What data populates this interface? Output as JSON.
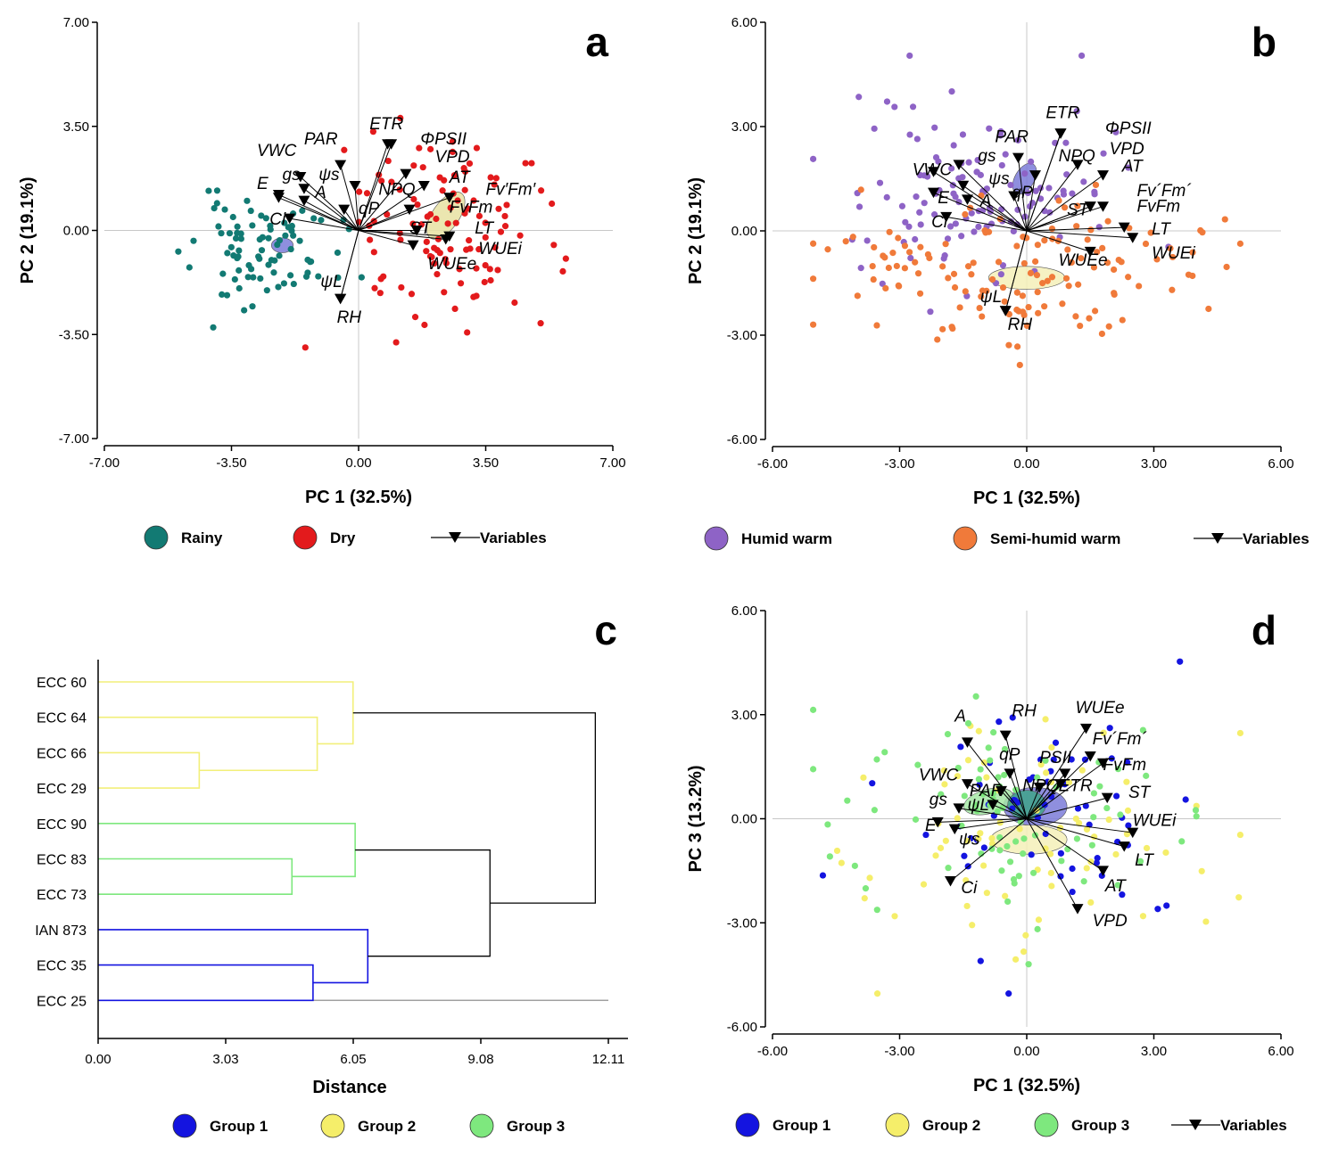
{
  "chart_data": [
    {
      "panel": "a",
      "type": "scatter",
      "xlabel": "PC 1 (32.5%)",
      "ylabel": "PC 2 (19.1%)",
      "xlim": [
        -7,
        7
      ],
      "ylim": [
        -7,
        7
      ],
      "xticks": [
        "-7.00",
        "-3.50",
        "0.00",
        "3.50",
        "7.00"
      ],
      "yticks": [
        "7.00",
        "3.50",
        "0.00",
        "-3.50",
        "-7.00"
      ],
      "groups": [
        {
          "name": "Rainy",
          "color": "#127a73",
          "seed": 11,
          "center": [
            -2.6,
            -0.7
          ],
          "spread": [
            1.0,
            0.9
          ],
          "n": 85
        },
        {
          "name": "Dry",
          "color": "#e31a1c",
          "seed": 23,
          "center": [
            2.4,
            0.1
          ],
          "spread": [
            1.5,
            1.8
          ],
          "n": 110
        }
      ],
      "ellipses": [
        {
          "cx": -2.1,
          "cy": -0.5,
          "rx": 0.3,
          "ry": 0.25,
          "angle": 0,
          "color": "#7b7bd8"
        },
        {
          "cx": 2.4,
          "cy": 0.5,
          "rx": 0.75,
          "ry": 0.45,
          "angle": -55,
          "color": "#e8e2a2"
        }
      ],
      "variables": [
        {
          "name": "ETR",
          "x": 0.9,
          "y": 2.9,
          "lx": 0.3,
          "ly": 3.4
        },
        {
          "name": "ΦPSII",
          "x": 0.8,
          "y": 2.9,
          "lx": 1.7,
          "ly": 2.9
        },
        {
          "name": "PAR",
          "x": -0.5,
          "y": 2.2,
          "lx": -1.5,
          "ly": 2.9
        },
        {
          "name": "VWC",
          "x": -1.6,
          "y": 1.8,
          "lx": -2.8,
          "ly": 2.5
        },
        {
          "name": "VPD",
          "x": 1.3,
          "y": 1.9,
          "lx": 2.1,
          "ly": 2.3
        },
        {
          "name": "AT",
          "x": 1.8,
          "y": 1.5,
          "lx": 2.5,
          "ly": 1.6
        },
        {
          "name": "gs",
          "x": -2.2,
          "y": 1.1,
          "lx": -2.1,
          "ly": 1.7
        },
        {
          "name": "ψs",
          "x": -1.5,
          "y": 1.4,
          "lx": -1.1,
          "ly": 1.7
        },
        {
          "name": "E",
          "x": -2.2,
          "y": 1.2,
          "lx": -2.8,
          "ly": 1.4
        },
        {
          "name": "NPQ",
          "x": -0.1,
          "y": 1.5,
          "lx": 0.55,
          "ly": 1.2
        },
        {
          "name": "Fv′Fm′",
          "x": 2.5,
          "y": 1.1,
          "lx": 3.5,
          "ly": 1.2
        },
        {
          "name": "A",
          "x": -1.5,
          "y": 1.0,
          "lx": -1.2,
          "ly": 1.1
        },
        {
          "name": "qP",
          "x": -0.4,
          "y": 0.7,
          "lx": 0.0,
          "ly": 0.55
        },
        {
          "name": "FvFm",
          "x": 1.4,
          "y": 0.7,
          "lx": 2.5,
          "ly": 0.6
        },
        {
          "name": "Ci",
          "x": -1.9,
          "y": 0.4,
          "lx": -2.45,
          "ly": 0.2
        },
        {
          "name": "ST",
          "x": 1.6,
          "y": 0.0,
          "lx": 1.4,
          "ly": -0.1
        },
        {
          "name": "LT",
          "x": 2.5,
          "y": -0.2,
          "lx": 3.2,
          "ly": -0.1
        },
        {
          "name": "WUEi",
          "x": 2.4,
          "y": -0.3,
          "lx": 3.3,
          "ly": -0.8
        },
        {
          "name": "WUEe",
          "x": 1.5,
          "y": -0.5,
          "lx": 1.9,
          "ly": -1.3
        },
        {
          "name": "ψL",
          "x": -0.5,
          "y": -2.3,
          "lx": -1.05,
          "ly": -1.9
        },
        {
          "name": "RH",
          "x": -0.5,
          "y": -2.3,
          "lx": -0.6,
          "ly": -3.1
        }
      ],
      "legend": {
        "items": [
          "Rainy",
          "Dry"
        ],
        "variables_label": "Variables"
      }
    },
    {
      "panel": "b",
      "type": "scatter",
      "xlabel": "PC 1 (32.5%)",
      "ylabel": "PC 2 (19.1%)",
      "xlim": [
        -6,
        6
      ],
      "ylim": [
        -6,
        6
      ],
      "xticks": [
        "-6.00",
        "-3.00",
        "0.00",
        "3.00",
        "6.00"
      ],
      "yticks": [
        "6.00",
        "3.00",
        "0.00",
        "-3.00",
        "-6.00"
      ],
      "groups": [
        {
          "name": "Humid warm",
          "color": "#8e63c6",
          "seed": 37,
          "center": [
            -1.0,
            1.2
          ],
          "spread": [
            1.5,
            1.4
          ],
          "n": 120
        },
        {
          "name": "Semi-humid warm",
          "color": "#f07a3a",
          "seed": 49,
          "center": [
            0.0,
            -1.2
          ],
          "spread": [
            2.5,
            1.1
          ],
          "n": 140
        }
      ],
      "ellipses": [
        {
          "cx": -0.05,
          "cy": 1.5,
          "rx": 0.4,
          "ry": 0.28,
          "angle": -60,
          "color": "#7b7bd8"
        },
        {
          "cx": 0.0,
          "cy": -1.35,
          "rx": 0.9,
          "ry": 0.33,
          "angle": 0,
          "color": "#f4f0b8"
        }
      ],
      "variables": [
        {
          "name": "ETR",
          "x": 0.8,
          "y": 2.8,
          "lx": 0.45,
          "ly": 3.25
        },
        {
          "name": "ΦPSII",
          "x": 0.8,
          "y": 2.8,
          "lx": 1.85,
          "ly": 2.8
        },
        {
          "name": "PAR",
          "x": -0.2,
          "y": 2.1,
          "lx": -0.75,
          "ly": 2.55
        },
        {
          "name": "VPD",
          "x": 1.2,
          "y": 1.9,
          "lx": 1.95,
          "ly": 2.2
        },
        {
          "name": "gs",
          "x": -1.6,
          "y": 1.9,
          "lx": -1.15,
          "ly": 2.0
        },
        {
          "name": "VWC",
          "x": -2.2,
          "y": 1.7,
          "lx": -2.7,
          "ly": 1.6
        },
        {
          "name": "NPQ",
          "x": 0.2,
          "y": 1.6,
          "lx": 0.75,
          "ly": 2.0
        },
        {
          "name": "AT",
          "x": 1.8,
          "y": 1.6,
          "lx": 2.25,
          "ly": 1.7
        },
        {
          "name": "ψs",
          "x": -1.5,
          "y": 1.3,
          "lx": -0.9,
          "ly": 1.35
        },
        {
          "name": "qP",
          "x": -0.3,
          "y": 1.0,
          "lx": -0.35,
          "ly": 0.95
        },
        {
          "name": "Fv´Fm´",
          "x": 1.8,
          "y": 0.7,
          "lx": 2.6,
          "ly": 1.0
        },
        {
          "name": "E",
          "x": -2.2,
          "y": 1.1,
          "lx": -2.1,
          "ly": 0.8
        },
        {
          "name": "A",
          "x": -1.4,
          "y": 0.9,
          "lx": -1.1,
          "ly": 0.7
        },
        {
          "name": "ST",
          "x": 1.5,
          "y": 0.7,
          "lx": 0.95,
          "ly": 0.45
        },
        {
          "name": "FvFm",
          "x": 1.5,
          "y": 0.7,
          "lx": 2.6,
          "ly": 0.55
        },
        {
          "name": "Ci",
          "x": -1.9,
          "y": 0.4,
          "lx": -2.25,
          "ly": 0.1
        },
        {
          "name": "LT",
          "x": 2.3,
          "y": 0.1,
          "lx": 2.95,
          "ly": -0.1
        },
        {
          "name": "WUEi",
          "x": 2.5,
          "y": -0.2,
          "lx": 2.95,
          "ly": -0.8
        },
        {
          "name": "WUEe",
          "x": 1.5,
          "y": -0.6,
          "lx": 0.75,
          "ly": -1.0
        },
        {
          "name": "ψL",
          "x": -0.5,
          "y": -2.3,
          "lx": -1.1,
          "ly": -2.05
        },
        {
          "name": "RH",
          "x": -0.5,
          "y": -2.3,
          "lx": -0.45,
          "ly": -2.85
        }
      ],
      "legend": {
        "items": [
          "Humid warm",
          "Semi-humid warm"
        ],
        "variables_label": "Variables"
      }
    },
    {
      "panel": "c",
      "type": "dendrogram",
      "xlabel": "Distance",
      "xlim": [
        0,
        12.11
      ],
      "xticks": [
        "0.00",
        "3.03",
        "6.05",
        "9.08",
        "12.11"
      ],
      "leaves": [
        "ECC 60",
        "ECC 64",
        "ECC 66",
        "ECC 29",
        "ECC 90",
        "ECC 83",
        "ECC 73",
        "IAN 873",
        "ECC 35",
        "ECC 25"
      ],
      "merges": [
        {
          "a": 2,
          "b": 3,
          "height": 2.4,
          "color": "#f2ef7a"
        },
        {
          "a": 1,
          "b": "m0",
          "height": 5.2,
          "color": "#f2ef7a"
        },
        {
          "a": 0,
          "b": "m1",
          "height": 6.05,
          "color": "#f2ef7a"
        },
        {
          "a": 5,
          "b": 6,
          "height": 4.6,
          "color": "#7ee87e"
        },
        {
          "a": 4,
          "b": "m3",
          "height": 6.1,
          "color": "#7ee87e"
        },
        {
          "a": 8,
          "b": 9,
          "height": 5.1,
          "color": "#1414e0"
        },
        {
          "a": 7,
          "b": "m5",
          "height": 6.4,
          "color": "#1414e0"
        },
        {
          "a": "m4",
          "b": "m6",
          "height": 9.3,
          "color": "#000000"
        },
        {
          "a": "m2",
          "b": "m7",
          "height": 11.8,
          "color": "#000000"
        }
      ],
      "legend": {
        "items": [
          "Group 1",
          "Group 2",
          "Group 3"
        ]
      }
    },
    {
      "panel": "d",
      "type": "scatter",
      "xlabel": "PC 1 (32.5%)",
      "ylabel": "PC 3 (13.2%)",
      "xlim": [
        -6,
        6
      ],
      "ylim": [
        -6,
        6
      ],
      "xticks": [
        "-6.00",
        "-3.00",
        "0.00",
        "3.00",
        "6.00"
      ],
      "yticks": [
        "6.00",
        "3.00",
        "0.00",
        "-3.00",
        "-6.00"
      ],
      "groups": [
        {
          "name": "Group 1",
          "color": "#1414e0",
          "seed": 61,
          "center": [
            0.2,
            0.4
          ],
          "spread": [
            1.9,
            1.8
          ],
          "n": 60
        },
        {
          "name": "Group 2",
          "color": "#f5ee6a",
          "seed": 73,
          "center": [
            0.2,
            -0.6
          ],
          "spread": [
            2.4,
            1.6
          ],
          "n": 75
        },
        {
          "name": "Group 3",
          "color": "#7ee87e",
          "seed": 89,
          "center": [
            -1.0,
            0.2
          ],
          "spread": [
            2.0,
            1.4
          ],
          "n": 80
        }
      ],
      "ellipses": [
        {
          "cx": 0.2,
          "cy": 0.35,
          "rx": 0.75,
          "ry": 0.55,
          "angle": 0,
          "color": "#7b7bd8"
        },
        {
          "cx": 0.05,
          "cy": -0.6,
          "rx": 0.9,
          "ry": 0.42,
          "angle": 0,
          "color": "#f4f0b8"
        },
        {
          "cx": -0.9,
          "cy": 0.5,
          "rx": 0.6,
          "ry": 0.35,
          "angle": -15,
          "color": "#a6e8a6"
        },
        {
          "cx": 0.0,
          "cy": 0.4,
          "rx": 0.45,
          "ry": 0.42,
          "angle": 0,
          "color": "#3fa58a"
        }
      ],
      "variables": [
        {
          "name": "WUEe",
          "x": 1.4,
          "y": 2.6,
          "lx": 1.15,
          "ly": 3.05
        },
        {
          "name": "A",
          "x": -1.4,
          "y": 2.2,
          "lx": -1.7,
          "ly": 2.8
        },
        {
          "name": "RH",
          "x": -0.5,
          "y": 2.4,
          "lx": -0.35,
          "ly": 2.95
        },
        {
          "name": "Fv´Fm´",
          "x": 1.5,
          "y": 1.8,
          "lx": 1.55,
          "ly": 2.15
        },
        {
          "name": "qP",
          "x": -0.4,
          "y": 1.3,
          "lx": -0.65,
          "ly": 1.7
        },
        {
          "name": "PSII",
          "x": 0.9,
          "y": 1.3,
          "lx": 0.3,
          "ly": 1.6
        },
        {
          "name": "FvFm",
          "x": 1.8,
          "y": 1.6,
          "lx": 1.8,
          "ly": 1.4
        },
        {
          "name": "VWC",
          "x": -1.4,
          "y": 1.0,
          "lx": -2.55,
          "ly": 1.1
        },
        {
          "name": "ETR",
          "x": 0.8,
          "y": 1.0,
          "lx": 0.75,
          "ly": 0.8
        },
        {
          "name": "NPQ",
          "x": 0.3,
          "y": 0.9,
          "lx": -0.1,
          "ly": 0.8
        },
        {
          "name": "PAR",
          "x": -0.6,
          "y": 0.8,
          "lx": -1.35,
          "ly": 0.65
        },
        {
          "name": "ST",
          "x": 1.9,
          "y": 0.6,
          "lx": 2.4,
          "ly": 0.6
        },
        {
          "name": "gs",
          "x": -1.6,
          "y": 0.3,
          "lx": -2.3,
          "ly": 0.4
        },
        {
          "name": "ψL",
          "x": -0.8,
          "y": 0.4,
          "lx": -1.4,
          "ly": 0.25
        },
        {
          "name": "E",
          "x": -2.1,
          "y": -0.1,
          "lx": -2.4,
          "ly": -0.35
        },
        {
          "name": "WUEi",
          "x": 2.5,
          "y": -0.4,
          "lx": 2.5,
          "ly": -0.2
        },
        {
          "name": "ψs",
          "x": -1.7,
          "y": -0.3,
          "lx": -1.6,
          "ly": -0.75
        },
        {
          "name": "LT",
          "x": 2.3,
          "y": -0.8,
          "lx": 2.55,
          "ly": -1.35
        },
        {
          "name": "AT",
          "x": 1.8,
          "y": -1.5,
          "lx": 1.85,
          "ly": -2.1
        },
        {
          "name": "Ci",
          "x": -1.8,
          "y": -1.8,
          "lx": -1.55,
          "ly": -2.15
        },
        {
          "name": "VPD",
          "x": 1.2,
          "y": -2.6,
          "lx": 1.55,
          "ly": -3.1
        }
      ],
      "legend": {
        "items": [
          "Group 1",
          "Group 2",
          "Group 3"
        ],
        "variables_label": "Variables"
      }
    }
  ]
}
